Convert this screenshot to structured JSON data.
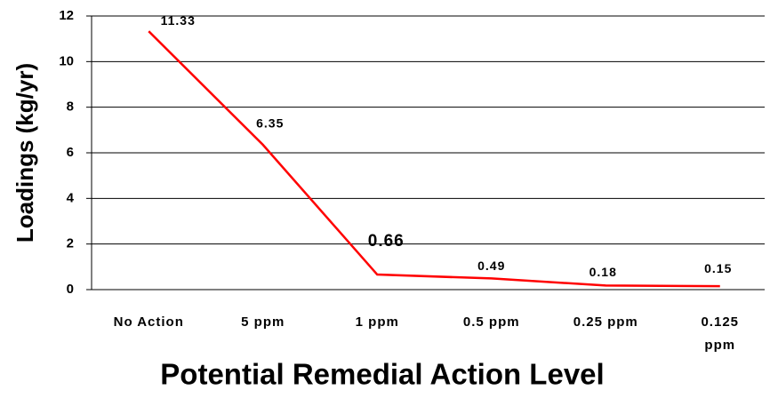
{
  "chart_data": {
    "type": "line",
    "x_label": "Potential Remedial Action Level",
    "y_label": "Loadings (kg/yr)",
    "categories": [
      "No Action",
      "5 ppm",
      "1 ppm",
      "0.5 ppm",
      "0.25 ppm",
      "0.125 ppm"
    ],
    "series": [
      {
        "name": "Loadings",
        "color": "#ff0000",
        "values": [
          11.33,
          6.35,
          0.66,
          0.49,
          0.18,
          0.15
        ]
      }
    ],
    "ylim": [
      0,
      12
    ],
    "yticks": [
      0,
      2,
      4,
      6,
      8,
      10,
      12
    ],
    "grid": true
  }
}
